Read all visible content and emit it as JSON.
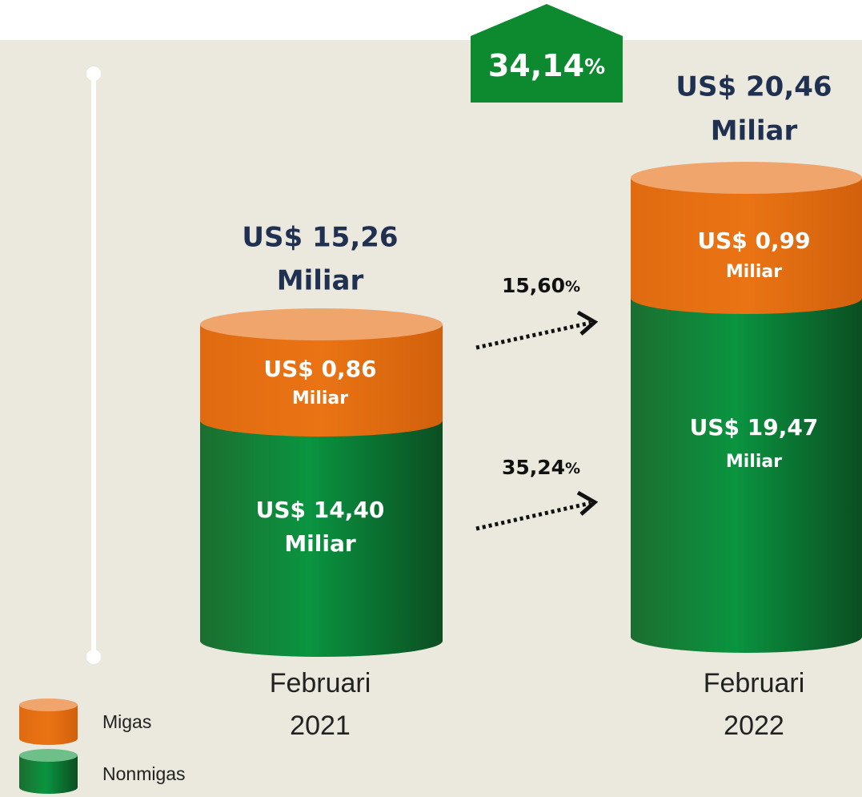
{
  "growth": {
    "value": "34,14",
    "unit": "%"
  },
  "columns": [
    {
      "total": "US$ 15,26",
      "total_unit": "Miliar",
      "migas": "US$ 0,86",
      "migas_unit": "Miliar",
      "nonmigas": "US$ 14,40",
      "nonmigas_unit": "Miliar",
      "period": "Februari",
      "year": "2021"
    },
    {
      "total": "US$ 20,46",
      "total_unit": "Miliar",
      "migas": "US$ 0,99",
      "migas_unit": "Miliar",
      "nonmigas": "US$ 19,47",
      "nonmigas_unit": "Miliar",
      "period": "Februari",
      "year": "2022"
    }
  ],
  "changes": [
    {
      "value": "15,60",
      "unit": "%"
    },
    {
      "value": "35,24",
      "unit": "%"
    }
  ],
  "legend": [
    "Migas",
    "Nonmigas"
  ]
}
